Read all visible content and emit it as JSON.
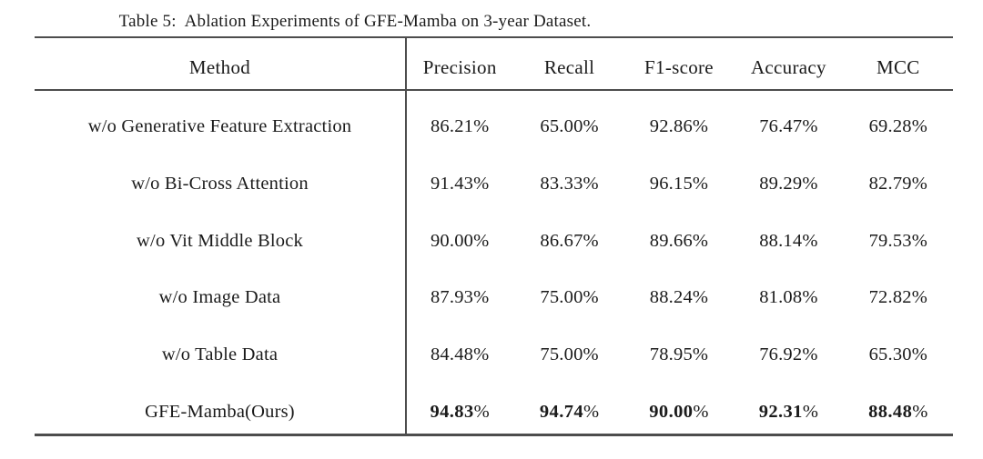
{
  "caption": "Table 5:  Ablation Experiments of GFE-Mamba on 3-year Dataset.",
  "table": {
    "columns": [
      "Method",
      "Precision",
      "Recall",
      "F1-score",
      "Accuracy",
      "MCC"
    ],
    "rows": [
      {
        "method": "w/o Generative Feature Extraction",
        "values": [
          "86.21%",
          "65.00%",
          "92.86%",
          "76.47%",
          "69.28%"
        ],
        "bold": false
      },
      {
        "method": "w/o Bi-Cross Attention",
        "values": [
          "91.43%",
          "83.33%",
          "96.15%",
          "89.29%",
          "82.79%"
        ],
        "bold": false
      },
      {
        "method": "w/o Vit Middle Block",
        "values": [
          "90.00%",
          "86.67%",
          "89.66%",
          "88.14%",
          "79.53%"
        ],
        "bold": false
      },
      {
        "method": "w/o Image Data",
        "values": [
          "87.93%",
          "75.00%",
          "88.24%",
          "81.08%",
          "72.82%"
        ],
        "bold": false
      },
      {
        "method": "w/o Table Data",
        "values": [
          "84.48%",
          "75.00%",
          "78.95%",
          "76.92%",
          "65.30%"
        ],
        "bold": false
      },
      {
        "method": "GFE-Mamba(Ours)",
        "values": [
          "94.83%",
          "94.74%",
          "90.00%",
          "92.31%",
          "88.48%"
        ],
        "bold": true
      }
    ]
  },
  "colors": {
    "rule": "#4d4d4d",
    "text": "#1b1b1b",
    "background": "#ffffff"
  }
}
